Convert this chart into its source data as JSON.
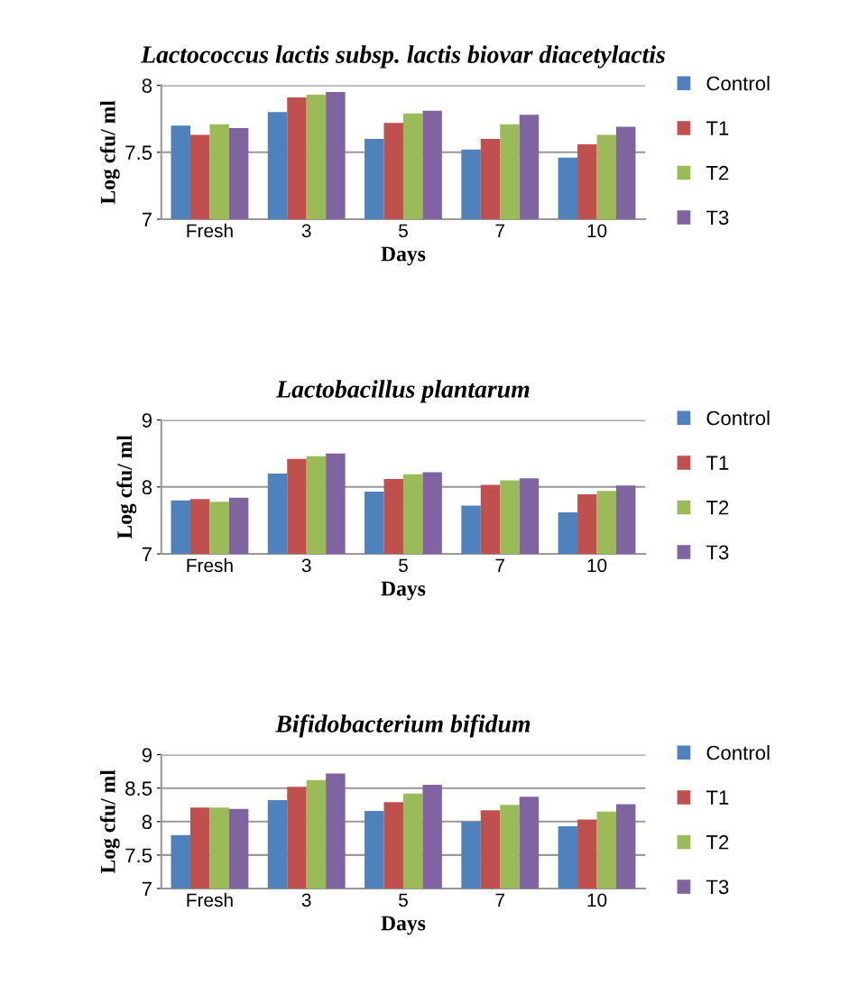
{
  "chart_data": [
    {
      "type": "bar",
      "title": "Lactococcus lactis subsp. lactis biovar diacetylactis",
      "xlabel": "Days",
      "ylabel": "Log cfu/ ml",
      "categories": [
        "Fresh",
        "3",
        "5",
        "7",
        "10"
      ],
      "ylim": [
        7,
        8
      ],
      "yticks": [
        7,
        7.5,
        8
      ],
      "grid": "y",
      "legend": "right",
      "series": [
        {
          "name": "Control",
          "color": "#4f81bd",
          "values": [
            7.7,
            7.8,
            7.6,
            7.52,
            7.46
          ]
        },
        {
          "name": "T1",
          "color": "#c0504d",
          "values": [
            7.63,
            7.91,
            7.72,
            7.6,
            7.56
          ]
        },
        {
          "name": "T2",
          "color": "#9bbb59",
          "values": [
            7.71,
            7.93,
            7.79,
            7.71,
            7.63
          ]
        },
        {
          "name": "T3",
          "color": "#8064a2",
          "values": [
            7.68,
            7.95,
            7.81,
            7.78,
            7.69
          ]
        }
      ]
    },
    {
      "type": "bar",
      "title": "Lactobacillus plantarum",
      "xlabel": "Days",
      "ylabel": "Log cfu/ ml",
      "categories": [
        "Fresh",
        "3",
        "5",
        "7",
        "10"
      ],
      "ylim": [
        7,
        9
      ],
      "yticks": [
        7,
        8,
        9
      ],
      "grid": "y",
      "legend": "right",
      "series": [
        {
          "name": "Control",
          "color": "#4f81bd",
          "values": [
            7.8,
            8.2,
            7.93,
            7.72,
            7.62
          ]
        },
        {
          "name": "T1",
          "color": "#c0504d",
          "values": [
            7.82,
            8.42,
            8.12,
            8.03,
            7.89
          ]
        },
        {
          "name": "T2",
          "color": "#9bbb59",
          "values": [
            7.78,
            8.46,
            8.19,
            8.1,
            7.94
          ]
        },
        {
          "name": "T3",
          "color": "#8064a2",
          "values": [
            7.84,
            8.5,
            8.22,
            8.13,
            8.02
          ]
        }
      ]
    },
    {
      "type": "bar",
      "title": "Bifidobacterium bifidum",
      "xlabel": "Days",
      "ylabel": "Log cfu/ ml",
      "categories": [
        "Fresh",
        "3",
        "5",
        "7",
        "10"
      ],
      "ylim": [
        7,
        9
      ],
      "yticks": [
        7,
        7.5,
        8,
        8.5,
        9
      ],
      "grid": "y",
      "legend": "right",
      "series": [
        {
          "name": "Control",
          "color": "#4f81bd",
          "values": [
            7.8,
            8.32,
            8.16,
            8.0,
            7.93
          ]
        },
        {
          "name": "T1",
          "color": "#c0504d",
          "values": [
            8.21,
            8.52,
            8.29,
            8.17,
            8.03
          ]
        },
        {
          "name": "T2",
          "color": "#9bbb59",
          "values": [
            8.21,
            8.62,
            8.42,
            8.25,
            8.15
          ]
        },
        {
          "name": "T3",
          "color": "#8064a2",
          "values": [
            8.19,
            8.72,
            8.55,
            8.37,
            8.26
          ]
        }
      ]
    }
  ]
}
